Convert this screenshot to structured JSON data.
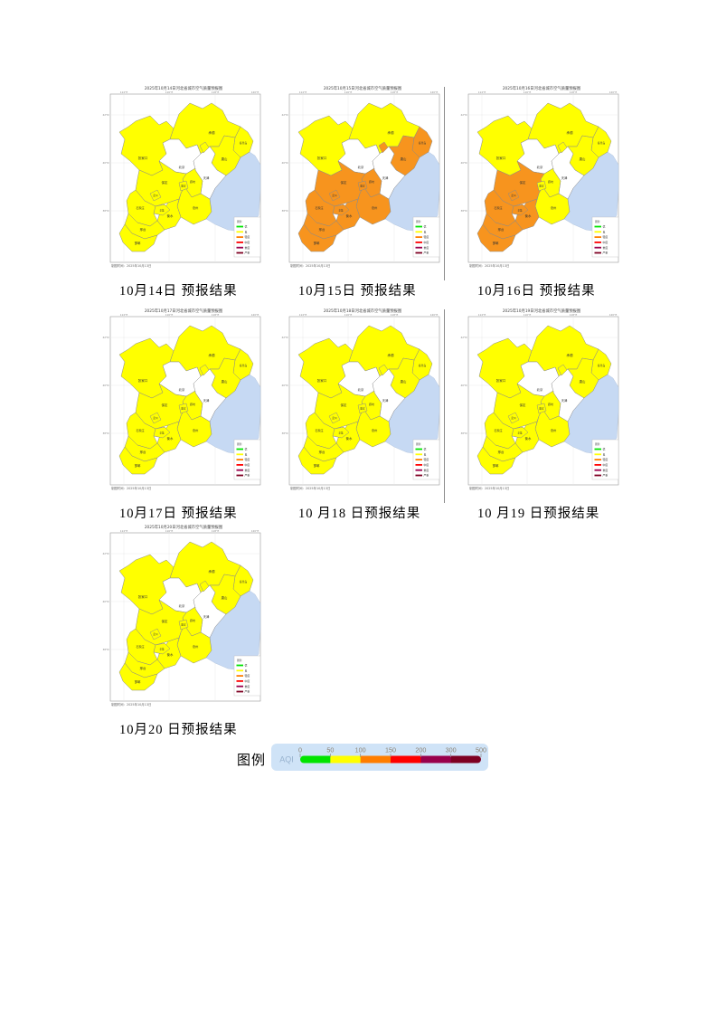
{
  "palette": {
    "yellow": "#ffff00",
    "orange": "#f7941e",
    "white": "#ffffff",
    "sea": "#c6d9f3"
  },
  "axis": {
    "top": [
      "114°E",
      "116°E",
      "118°E",
      "120°E"
    ],
    "left": [
      "42°N",
      "40°N",
      "38°N"
    ]
  },
  "region_labels": {
    "zhangjiakou": "张家口",
    "chengde": "承德",
    "qinhuangdao": "秦皇岛",
    "tangshan": "唐山",
    "beijing": "北京",
    "tianjin": "天津",
    "langfang": "廊坊",
    "baoding": "保定",
    "xiongan": "雄安",
    "dingzhou": "定州",
    "shijiazhuang": "石家庄",
    "xinji": "辛集",
    "cangzhou": "沧州",
    "hengshui": "衡水",
    "xingtai": "邢台",
    "handan": "邯郸"
  },
  "map_legend": {
    "title": "图例",
    "levels": [
      {
        "label": "优",
        "color": "#00e400"
      },
      {
        "label": "良",
        "color": "#ffff00"
      },
      {
        "label": "轻度",
        "color": "#ff7e00"
      },
      {
        "label": "中度",
        "color": "#ff0000"
      },
      {
        "label": "重度",
        "color": "#99004c"
      },
      {
        "label": "严重",
        "color": "#7e0023"
      }
    ]
  },
  "maps": [
    {
      "title": "2025年10月14日河北省城市空气质量预报图",
      "caption": "10月14日 预报结果",
      "made_on": "制图时间：2025年10月13日",
      "orange_regions": []
    },
    {
      "title": "2025年10月15日河北省城市空气质量预报图",
      "caption": "10月15日 预报结果",
      "made_on": "制图时间：2025年10月13日",
      "orange_regions": [
        "qinhuangdao",
        "tangshan",
        "langfang",
        "langfang_exclave",
        "baoding",
        "xiongan",
        "dingzhou",
        "shijiazhuang",
        "xinji",
        "cangzhou",
        "hengshui",
        "xingtai",
        "handan"
      ]
    },
    {
      "title": "2025年10月16日河北省城市空气质量预报图",
      "caption": "10月16日 预报结果",
      "made_on": "制图时间：2025年10月13日",
      "orange_regions": [
        "baoding",
        "dingzhou",
        "shijiazhuang",
        "xinji",
        "hengshui",
        "xingtai",
        "handan"
      ]
    },
    {
      "title": "2025年10月17日河北省城市空气质量预报图",
      "caption": "10月17日 预报结果",
      "made_on": "制图时间：2025年10月13日",
      "orange_regions": []
    },
    {
      "title": "2025年10月18日河北省城市空气质量预报图",
      "caption": "10 月18 日预报结果",
      "made_on": "制图时间：2025年10月13日",
      "orange_regions": []
    },
    {
      "title": "2025年10月19日河北省城市空气质量预报图",
      "caption": "10 月19 日预报结果",
      "made_on": "制图时间：2025年10月13日",
      "orange_regions": []
    },
    {
      "title": "2025年10月20日河北省城市空气质量预报图",
      "caption": "10月20 日预报结果",
      "made_on": "制图时间：2025年10月13日",
      "orange_regions": []
    }
  ],
  "aqi_legend": {
    "label": "图例",
    "axis": "AQI",
    "ticks": [
      "0",
      "50",
      "100",
      "150",
      "200",
      "300",
      "500"
    ],
    "segments": [
      "#00e400",
      "#ffff00",
      "#ff7e00",
      "#ff0000",
      "#99004c",
      "#7e0023"
    ]
  }
}
